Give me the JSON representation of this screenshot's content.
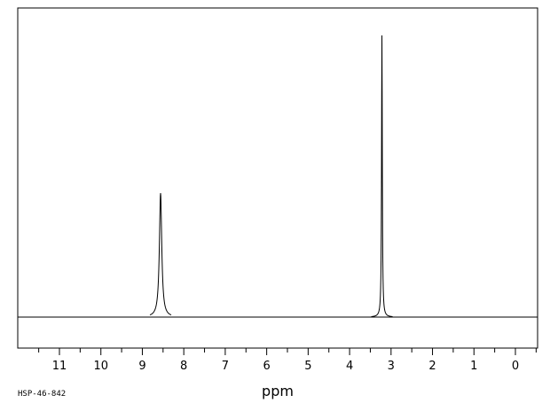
{
  "sample_id": "HSP-46-842",
  "chart_data": {
    "type": "line",
    "title": "",
    "xlabel": "ppm",
    "ylabel": "",
    "x_reversed": true,
    "xlim": [
      11.9,
      -0.5
    ],
    "ylim": [
      -0.105,
      1.0
    ],
    "grid": false,
    "x_ticks": [
      "11",
      "10",
      "9",
      "8",
      "7",
      "6",
      "5",
      "4",
      "3",
      "2",
      "1",
      "0"
    ],
    "baseline": 0,
    "peaks": [
      {
        "ppm": 8.56,
        "intensity": 0.44
      },
      {
        "ppm": 3.22,
        "intensity": 1.0
      }
    ]
  }
}
